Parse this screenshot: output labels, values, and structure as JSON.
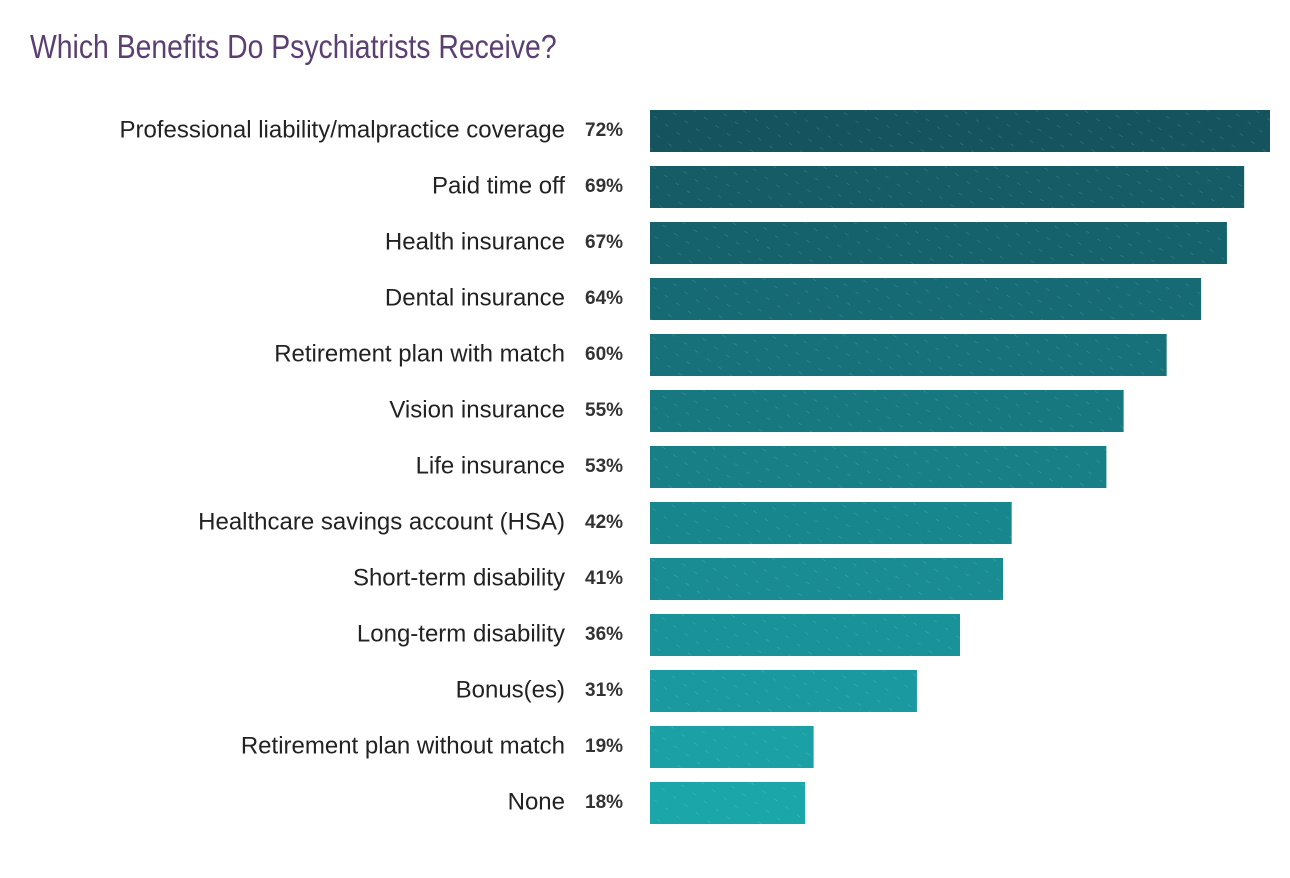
{
  "chart_data": {
    "type": "bar",
    "orientation": "horizontal",
    "title": "Which Benefits Do Psychiatrists Receive?",
    "categories": [
      "Professional liability/malpractice coverage",
      "Paid time off",
      "Health insurance",
      "Dental insurance",
      "Retirement plan with match",
      "Vision insurance",
      "Life insurance",
      "Healthcare savings account (HSA)",
      "Short-term disability",
      "Long-term disability",
      "Bonus(es)",
      "Retirement plan without match",
      "None"
    ],
    "values": [
      72,
      69,
      67,
      64,
      60,
      55,
      53,
      42,
      41,
      36,
      31,
      19,
      18
    ],
    "value_labels": [
      "72%",
      "69%",
      "67%",
      "64%",
      "60%",
      "55%",
      "53%",
      "42%",
      "41%",
      "36%",
      "31%",
      "19%",
      "18%"
    ],
    "colors": [
      "#15545f",
      "#155c66",
      "#16626c",
      "#166a73",
      "#17717a",
      "#177880",
      "#187f87",
      "#18868d",
      "#198c93",
      "#199399",
      "#1a9aa0",
      "#1aa0a5",
      "#1ba6aa"
    ]
  }
}
